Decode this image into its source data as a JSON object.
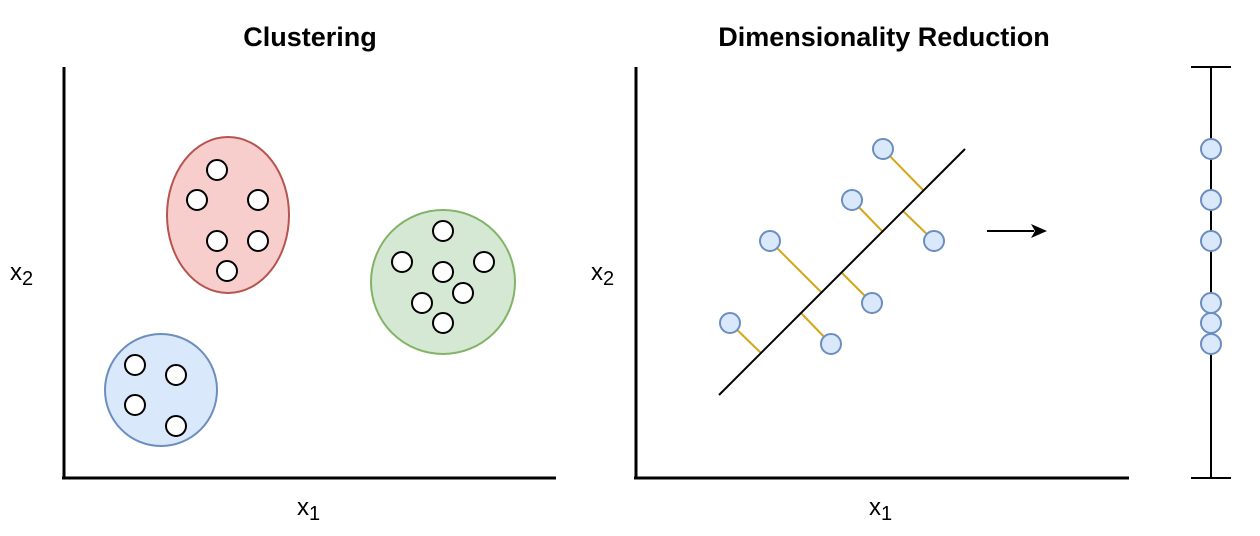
{
  "clustering": {
    "title": "Clustering",
    "xlabel_base": "x",
    "xlabel_sub": "1",
    "ylabel_base": "x",
    "ylabel_sub": "2"
  },
  "dimensionality_reduction": {
    "title": "Dimensionality Reduction",
    "xlabel_base": "x",
    "xlabel_sub": "1",
    "ylabel_base": "x",
    "ylabel_sub": "2"
  },
  "colors": {
    "axis": "#000000",
    "cluster_red_fill": "#f8cecc",
    "cluster_red_stroke": "#b85450",
    "cluster_green_fill": "#d5e8d4",
    "cluster_green_stroke": "#82b366",
    "cluster_blue_fill": "#dae8fc",
    "cluster_blue_stroke": "#6c8ebf",
    "point_fill": "#ffffff",
    "point_stroke": "#000000",
    "dr_point_fill": "#dae8fc",
    "dr_point_stroke": "#6c8ebf",
    "projection_line": "#d6a619"
  },
  "icons": {
    "arrow": "right-arrow-icon"
  }
}
